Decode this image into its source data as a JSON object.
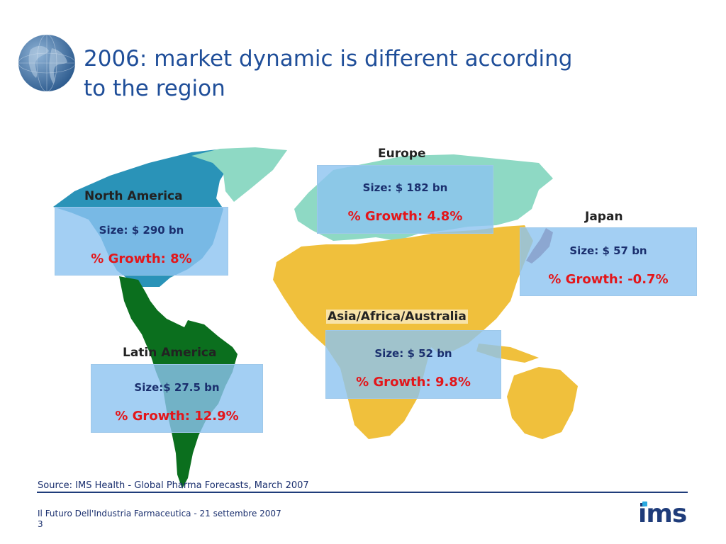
{
  "title": "2006: market dynamic is different according\nto the region",
  "regions": {
    "north_america": {
      "label": "North America",
      "size": "Size: $ 290 bn",
      "growth": "% Growth: 8%"
    },
    "europe": {
      "label": "Europe",
      "size": "Size: $ 182 bn",
      "growth": "% Growth: 4.8%"
    },
    "japan": {
      "label": "Japan",
      "size": "Size: $ 57 bn",
      "growth": "% Growth: -0.7%"
    },
    "asia_africa_australia": {
      "label": "Asia/Africa/Australia",
      "size": "Size: $ 52 bn",
      "growth": "% Growth: 9.8%"
    },
    "latin_america": {
      "label": "Latin America",
      "size": "Size:$ 27.5 bn",
      "growth": "% Growth: 12.9%"
    }
  },
  "source": "Source: IMS Health - Global Pharma Forecasts, March 2007",
  "footer": "Il Futuro Dell'Industria Farmaceutica - 21 settembre 2007",
  "page_number": "3",
  "logo": "ims",
  "colors": {
    "title": "#1f4e99",
    "north_america": "#2a93b8",
    "europe": "#8ed9c4",
    "asia_africa_australia": "#f0c03c",
    "latin_america": "#0b6f1e",
    "japan": "#8a3a57",
    "growth_text": "#e3161a",
    "box_fill": "#8cc3f0"
  }
}
